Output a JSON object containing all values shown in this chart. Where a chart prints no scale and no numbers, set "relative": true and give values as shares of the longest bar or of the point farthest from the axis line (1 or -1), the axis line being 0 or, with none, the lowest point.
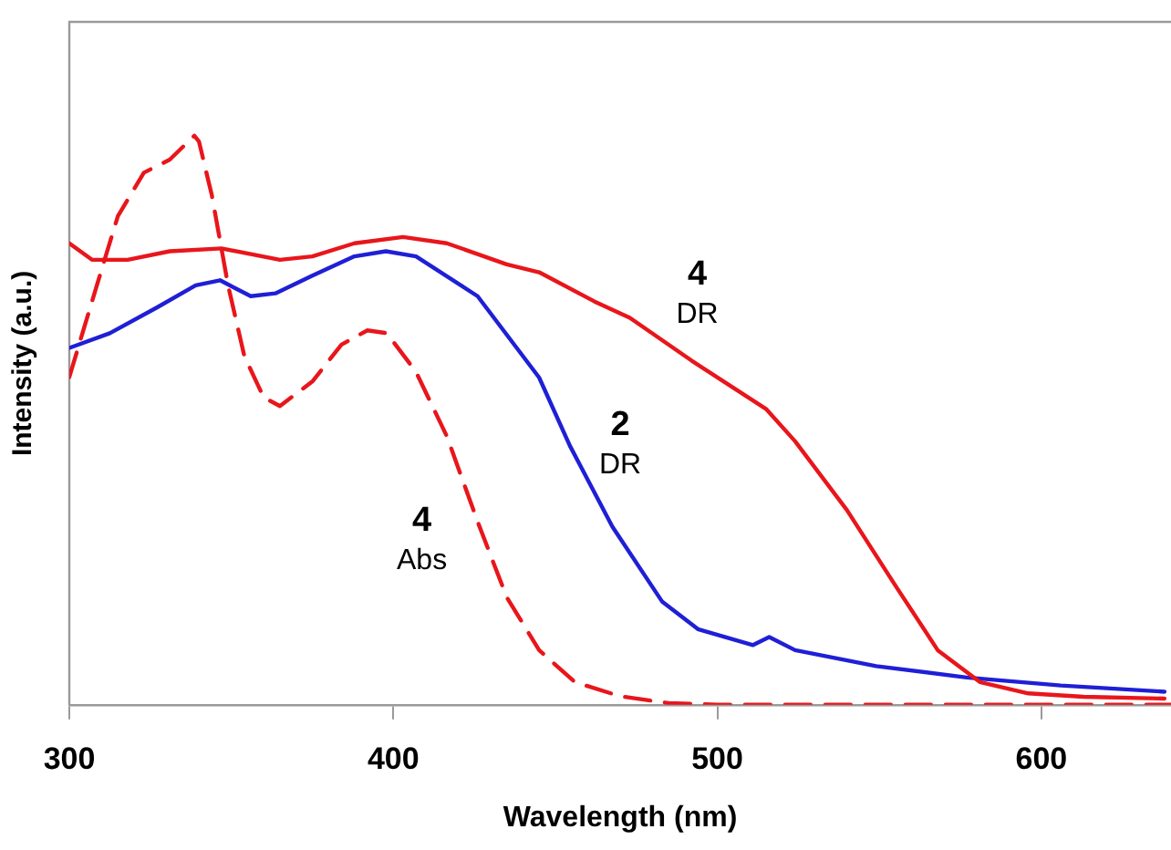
{
  "chart_data": {
    "type": "line",
    "relative": true,
    "xlabel": "Wavelength (nm)",
    "ylabel": "Intensity (a.u.)",
    "xlim": [
      300,
      640
    ],
    "xticks": [
      300,
      400,
      500,
      600
    ],
    "grid": false,
    "legend": false,
    "marker": "none",
    "series": [
      {
        "color": "#e8161b",
        "line_style": "dashed",
        "x": [
          300,
          308.5,
          315,
          323,
          331,
          338.6,
          340,
          344,
          349,
          354,
          360,
          365,
          375,
          384,
          392,
          398,
          407,
          416.5,
          426,
          435,
          445,
          456,
          470,
          485,
          500,
          640
        ],
        "values": [
          0.576,
          0.737,
          0.859,
          0.935,
          0.958,
          1,
          0.99,
          0.895,
          0.737,
          0.613,
          0.54,
          0.525,
          0.568,
          0.633,
          0.658,
          0.653,
          0.585,
          0.472,
          0.322,
          0.189,
          0.096,
          0.04,
          0.015,
          0.003,
          0,
          0
        ]
      },
      {
        "color": "#e8161b",
        "line_style": "solid",
        "x": [
          300,
          307,
          318,
          331,
          347,
          365,
          375,
          388,
          403,
          416.5,
          435,
          445,
          462,
          473,
          492,
          515,
          524,
          540,
          555,
          568,
          581,
          596,
          613,
          638
        ],
        "values": [
          0.811,
          0.782,
          0.782,
          0.797,
          0.802,
          0.782,
          0.788,
          0.811,
          0.822,
          0.811,
          0.774,
          0.76,
          0.709,
          0.68,
          0.605,
          0.52,
          0.463,
          0.342,
          0.209,
          0.096,
          0.04,
          0.02,
          0.014,
          0.011
        ]
      },
      {
        "color": "#1f1fd6",
        "line_style": "solid",
        "x": [
          300,
          312.5,
          327,
          339,
          346.5,
          356,
          363.6,
          375,
          388,
          397.7,
          407,
          426,
          445,
          454.5,
          467.6,
          483,
          494,
          511,
          516,
          524,
          549,
          577,
          606,
          638
        ],
        "values": [
          0.627,
          0.653,
          0.698,
          0.737,
          0.746,
          0.718,
          0.723,
          0.754,
          0.788,
          0.797,
          0.788,
          0.718,
          0.575,
          0.455,
          0.313,
          0.181,
          0.133,
          0.105,
          0.119,
          0.096,
          0.068,
          0.048,
          0.034,
          0.023
        ]
      }
    ],
    "annotations": [
      "4\nDR",
      "2\nDR",
      "4\nAbs"
    ]
  }
}
